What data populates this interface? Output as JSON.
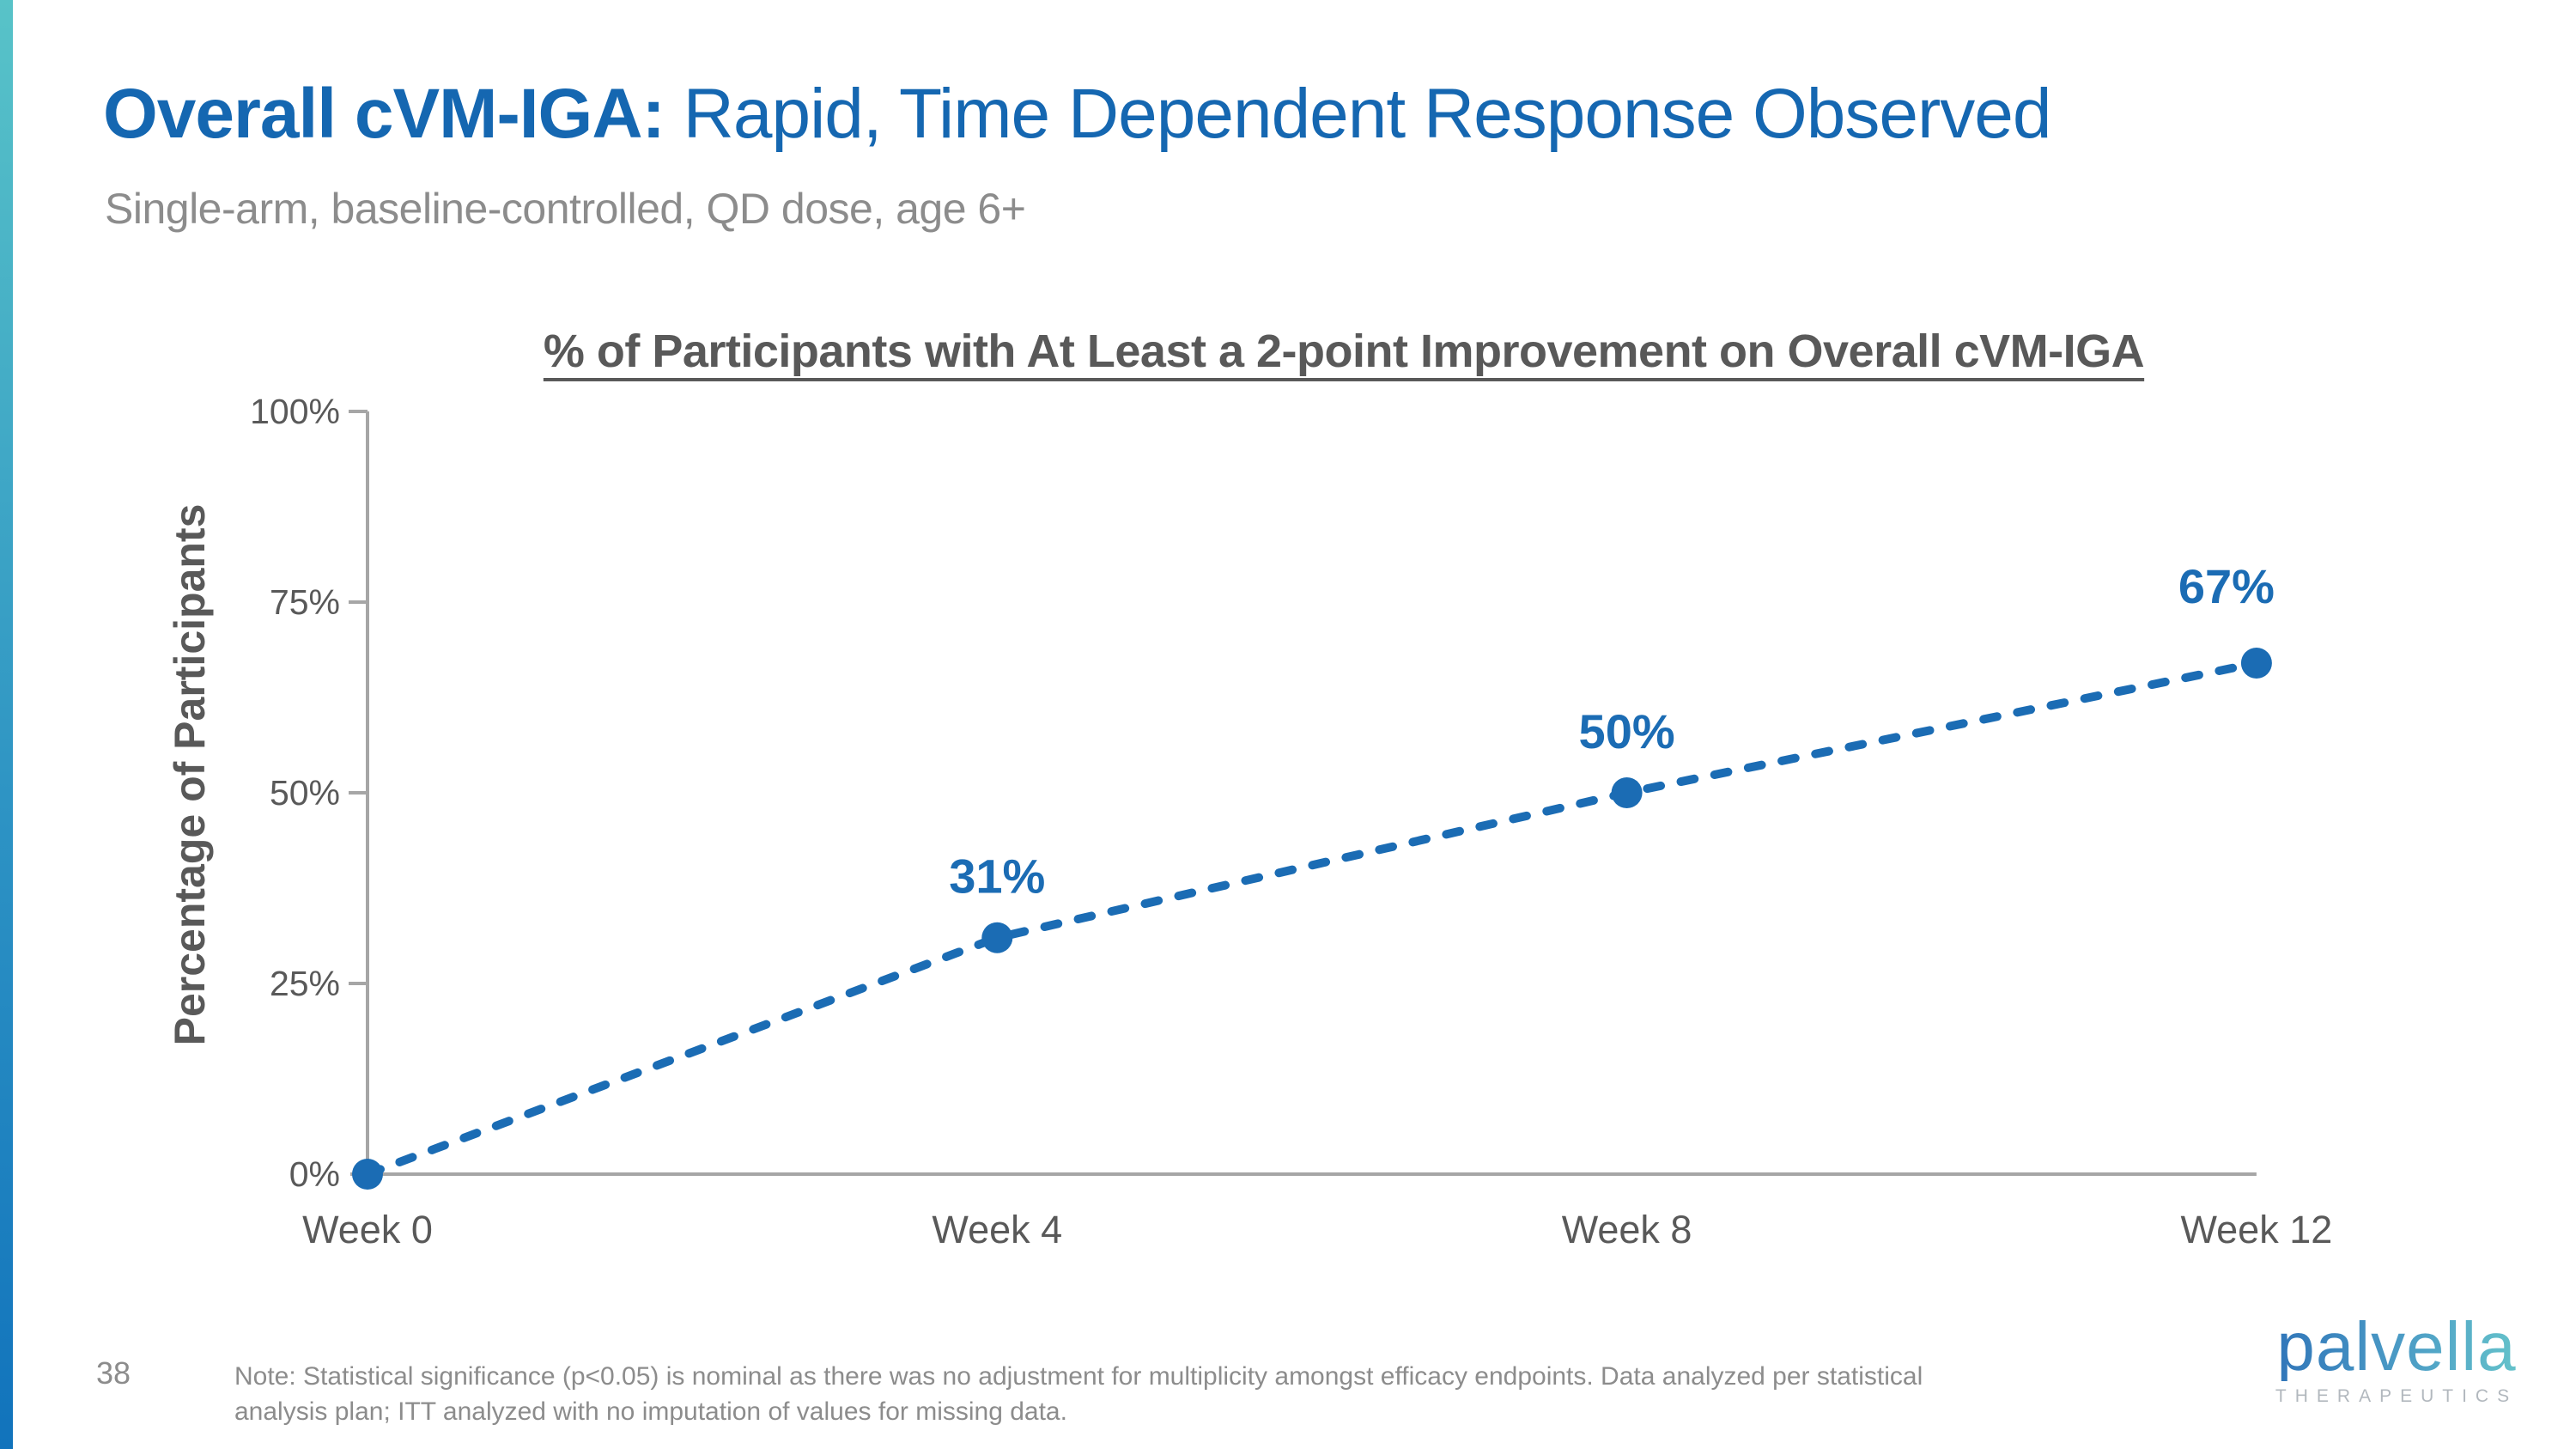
{
  "slide": {
    "title_bold": "Overall cVM-IGA:",
    "title_rest": " Rapid, Time Dependent Response Observed",
    "subtitle": "Single-arm, baseline-controlled, QD dose, age 6+",
    "page_number": "38",
    "note_line1": "Note: Statistical significance (p<0.05) is nominal as there was no adjustment for multiplicity amongst efficacy endpoints. Data analyzed per statistical",
    "note_line2": "analysis plan; ITT analyzed with no imputation of values for missing data."
  },
  "logo": {
    "wordmark": "palvella",
    "tagline": "THERAPEUTICS"
  },
  "colors": {
    "title_blue": "#1567B1",
    "series_blue": "#1B6CB4",
    "axis_gray": "#A6A6A6",
    "label_gray": "#595959",
    "muted_gray": "#8C8C8C",
    "accent_bar_top": "#58C3C8",
    "accent_bar_bottom": "#1173BC"
  },
  "chart_data": {
    "type": "line",
    "title": "% of Participants with At Least a 2-point Improvement on Overall cVM-IGA",
    "xlabel": "",
    "ylabel": "Percentage of Participants",
    "categories": [
      "Week 0",
      "Week 4",
      "Week 8",
      "Week 12"
    ],
    "values": [
      0,
      31,
      50,
      67
    ],
    "point_labels": [
      "",
      "31%",
      "50%",
      "67%"
    ],
    "y_ticks": [
      {
        "value": 0,
        "label": "0%"
      },
      {
        "value": 25,
        "label": "25%"
      },
      {
        "value": 50,
        "label": "50%"
      },
      {
        "value": 75,
        "label": "75%"
      },
      {
        "value": 100,
        "label": "100%"
      }
    ],
    "ylim": [
      0,
      100
    ],
    "grid": false,
    "legend": "none",
    "line_style": "dashed",
    "marker": "circle",
    "series_color": "#1B6CB4"
  }
}
